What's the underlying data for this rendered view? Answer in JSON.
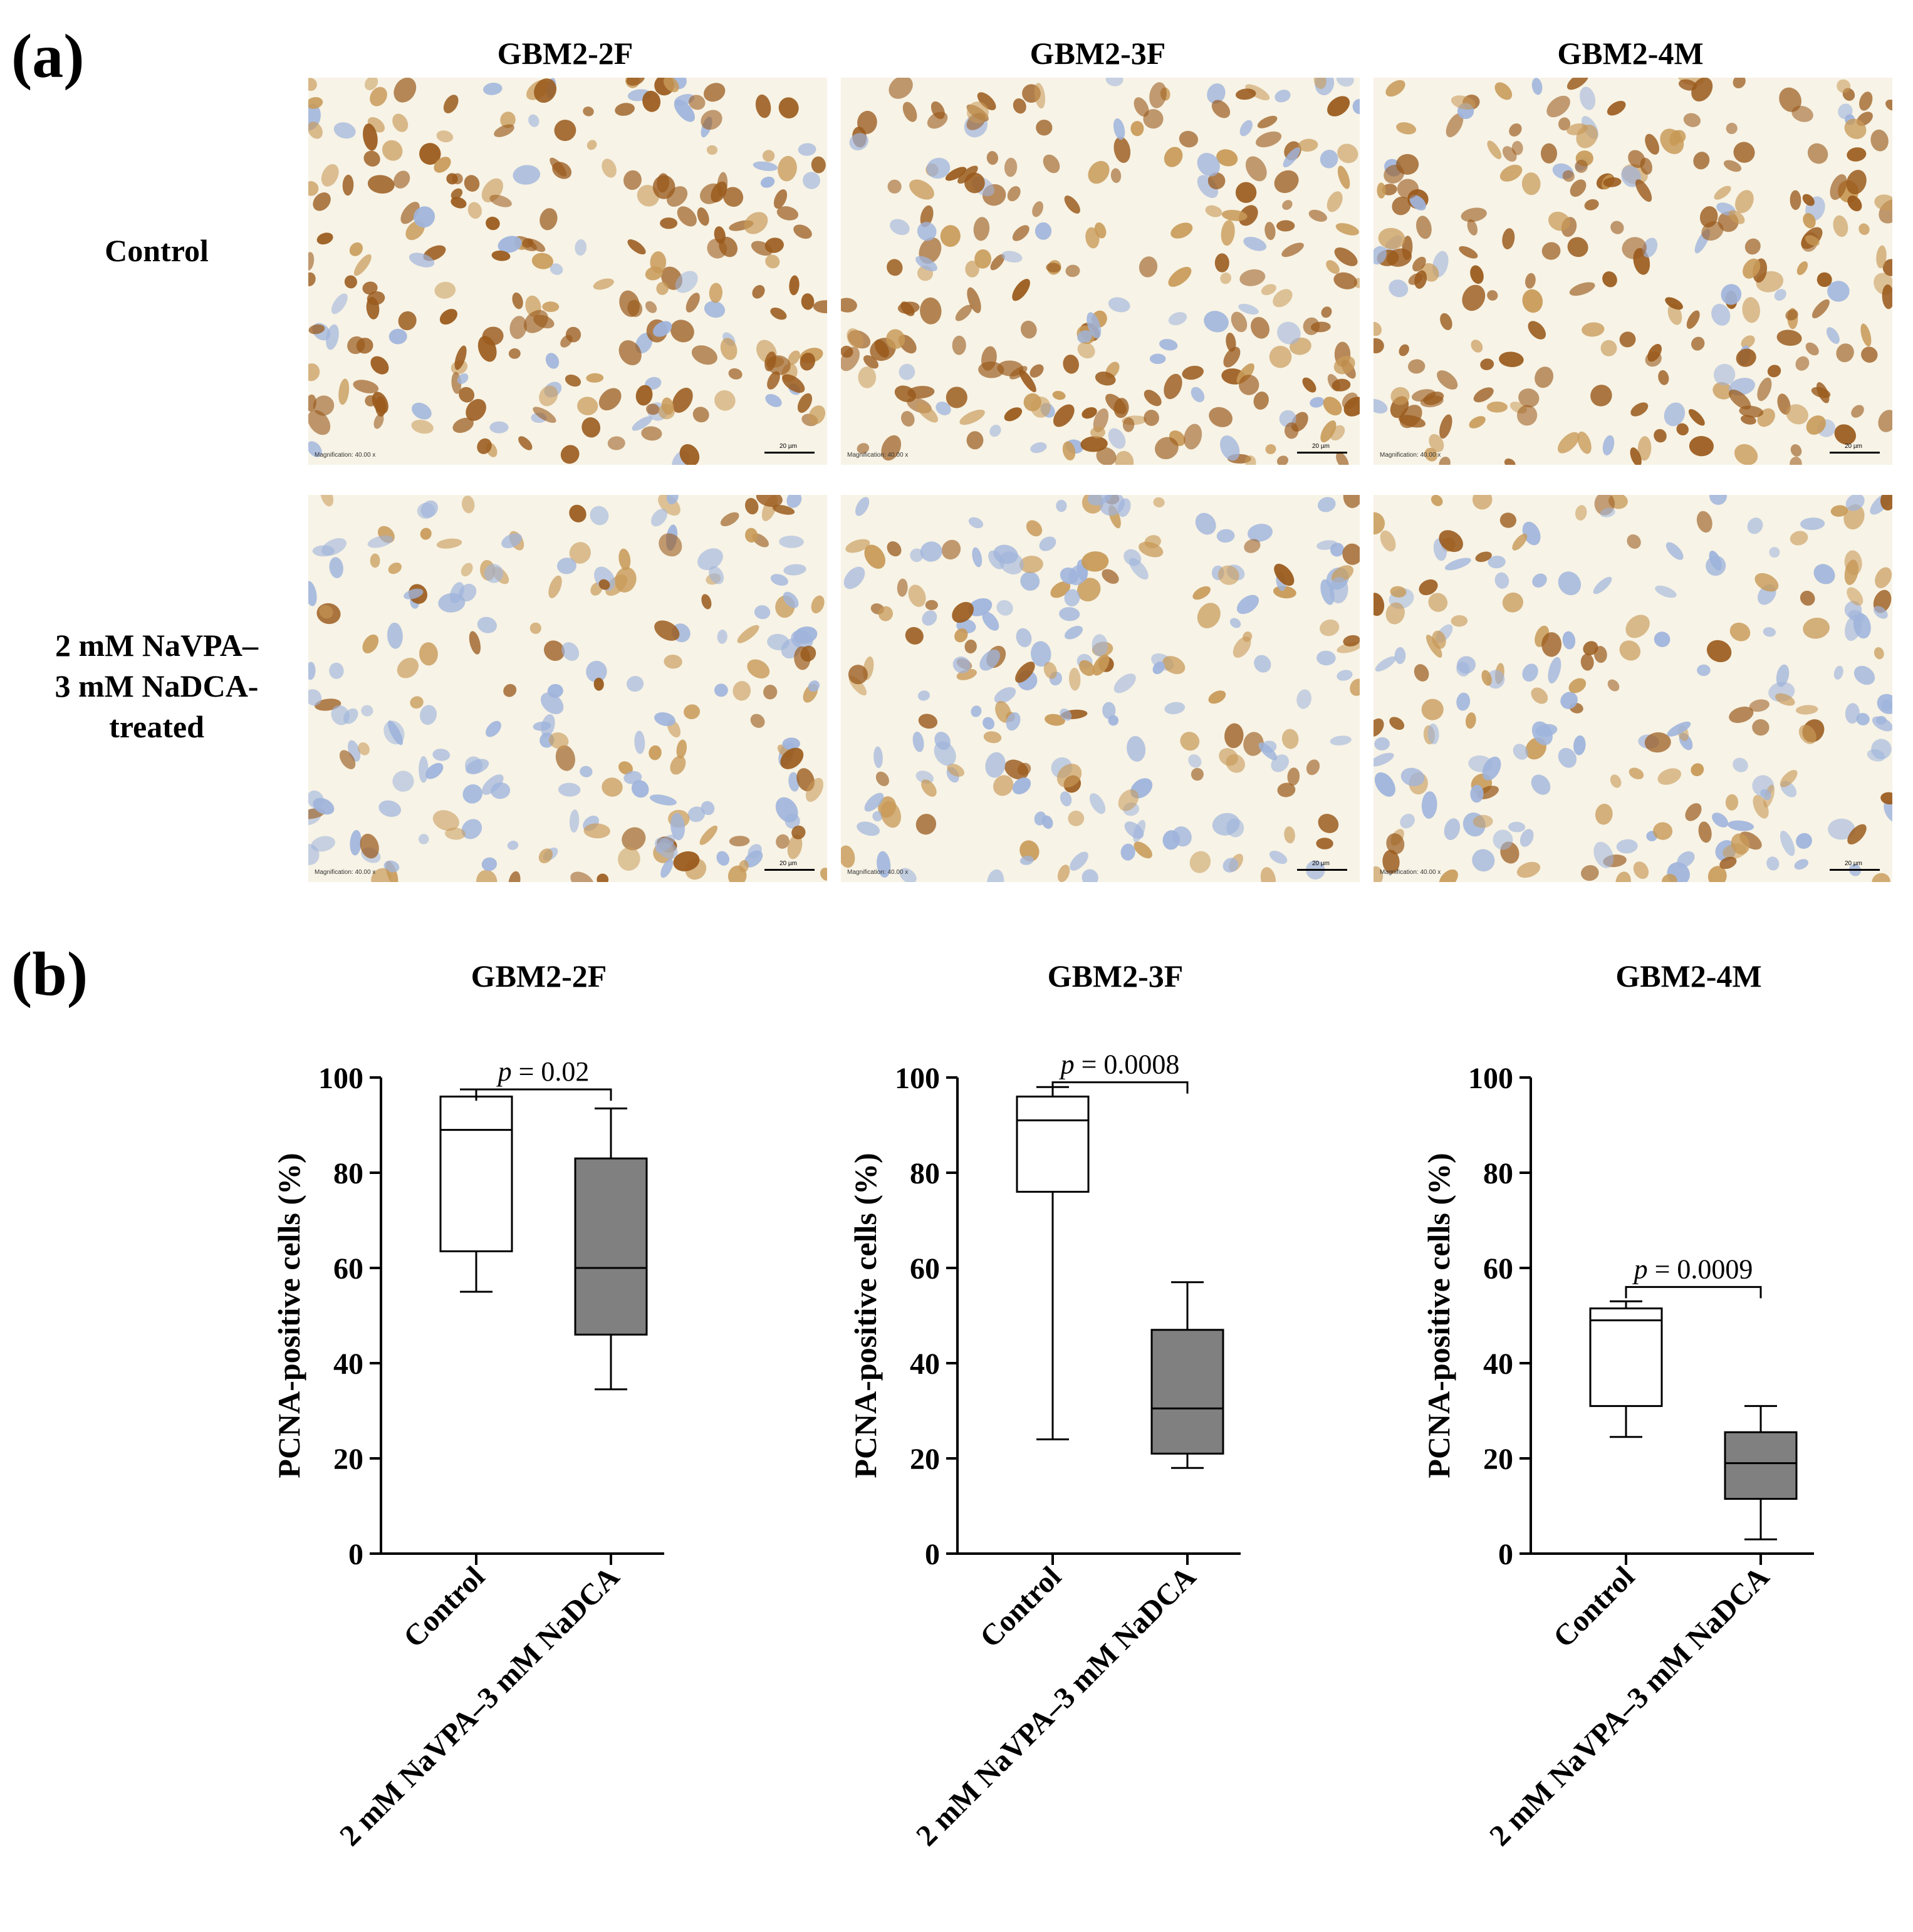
{
  "panel_a": {
    "letter": "(a)",
    "columns": [
      "GBM2-2F",
      "GBM2-3F",
      "GBM2-4M"
    ],
    "rows": [
      {
        "label_lines": [
          "Control"
        ],
        "stain_density": "high"
      },
      {
        "label_lines": [
          "2 mM NaVPA–",
          "3 mM NaDCA-",
          "treated"
        ],
        "stain_density": "low"
      }
    ],
    "magnification_text": "Magnification: 40.00 x",
    "scale_text": "20 µm",
    "colors": {
      "background": "#f7f3e6",
      "brown_nucleus": "#9a5a1c",
      "light_brown": "#c89a58",
      "blue_nucleus": "#9fb4dc"
    }
  },
  "panel_b": {
    "letter": "(b)"
  },
  "chart_data": [
    {
      "type": "boxplot",
      "title": "GBM2-2F",
      "ylabel": "PCNA-positive cells (%)",
      "ylim": [
        0,
        100
      ],
      "yticks": [
        0,
        20,
        40,
        60,
        80,
        100
      ],
      "categories": [
        "Control",
        "2 mM NaVPA–3 mM NaDCA"
      ],
      "boxes": [
        {
          "min": 55,
          "q1": 63.5,
          "median": 89,
          "q3": 96,
          "max": 97.5,
          "fill": "#ffffff"
        },
        {
          "min": 34.5,
          "q1": 46,
          "median": 60,
          "q3": 83,
          "max": 93.5,
          "fill": "#808080"
        }
      ],
      "significance": {
        "p_label": "p",
        "p_value": "= 0.02",
        "y": 97.5
      }
    },
    {
      "type": "boxplot",
      "title": "GBM2-3F",
      "ylabel": "PCNA-positive cells (%)",
      "ylim": [
        0,
        100
      ],
      "yticks": [
        0,
        20,
        40,
        60,
        80,
        100
      ],
      "categories": [
        "Control",
        "2 mM NaVPA–3 mM NaDCA"
      ],
      "boxes": [
        {
          "min": 24,
          "q1": 76,
          "median": 91,
          "q3": 96,
          "max": 98,
          "fill": "#ffffff"
        },
        {
          "min": 18,
          "q1": 21,
          "median": 30.5,
          "q3": 47,
          "max": 57,
          "fill": "#808080"
        }
      ],
      "significance": {
        "p_label": "p",
        "p_value": "= 0.0008",
        "y": 99
      }
    },
    {
      "type": "boxplot",
      "title": "GBM2-4M",
      "ylabel": "PCNA-positive cells (%)",
      "ylim": [
        0,
        100
      ],
      "yticks": [
        0,
        20,
        40,
        60,
        80,
        100
      ],
      "categories": [
        "Control",
        "2 mM NaVPA–3 mM NaDCA"
      ],
      "boxes": [
        {
          "min": 24.5,
          "q1": 31,
          "median": 49,
          "q3": 51.5,
          "max": 53,
          "fill": "#ffffff"
        },
        {
          "min": 3,
          "q1": 11.5,
          "median": 19,
          "q3": 25.5,
          "max": 31,
          "fill": "#808080"
        }
      ],
      "significance": {
        "p_label": "p",
        "p_value": "= 0.0009",
        "y": 56
      }
    }
  ]
}
